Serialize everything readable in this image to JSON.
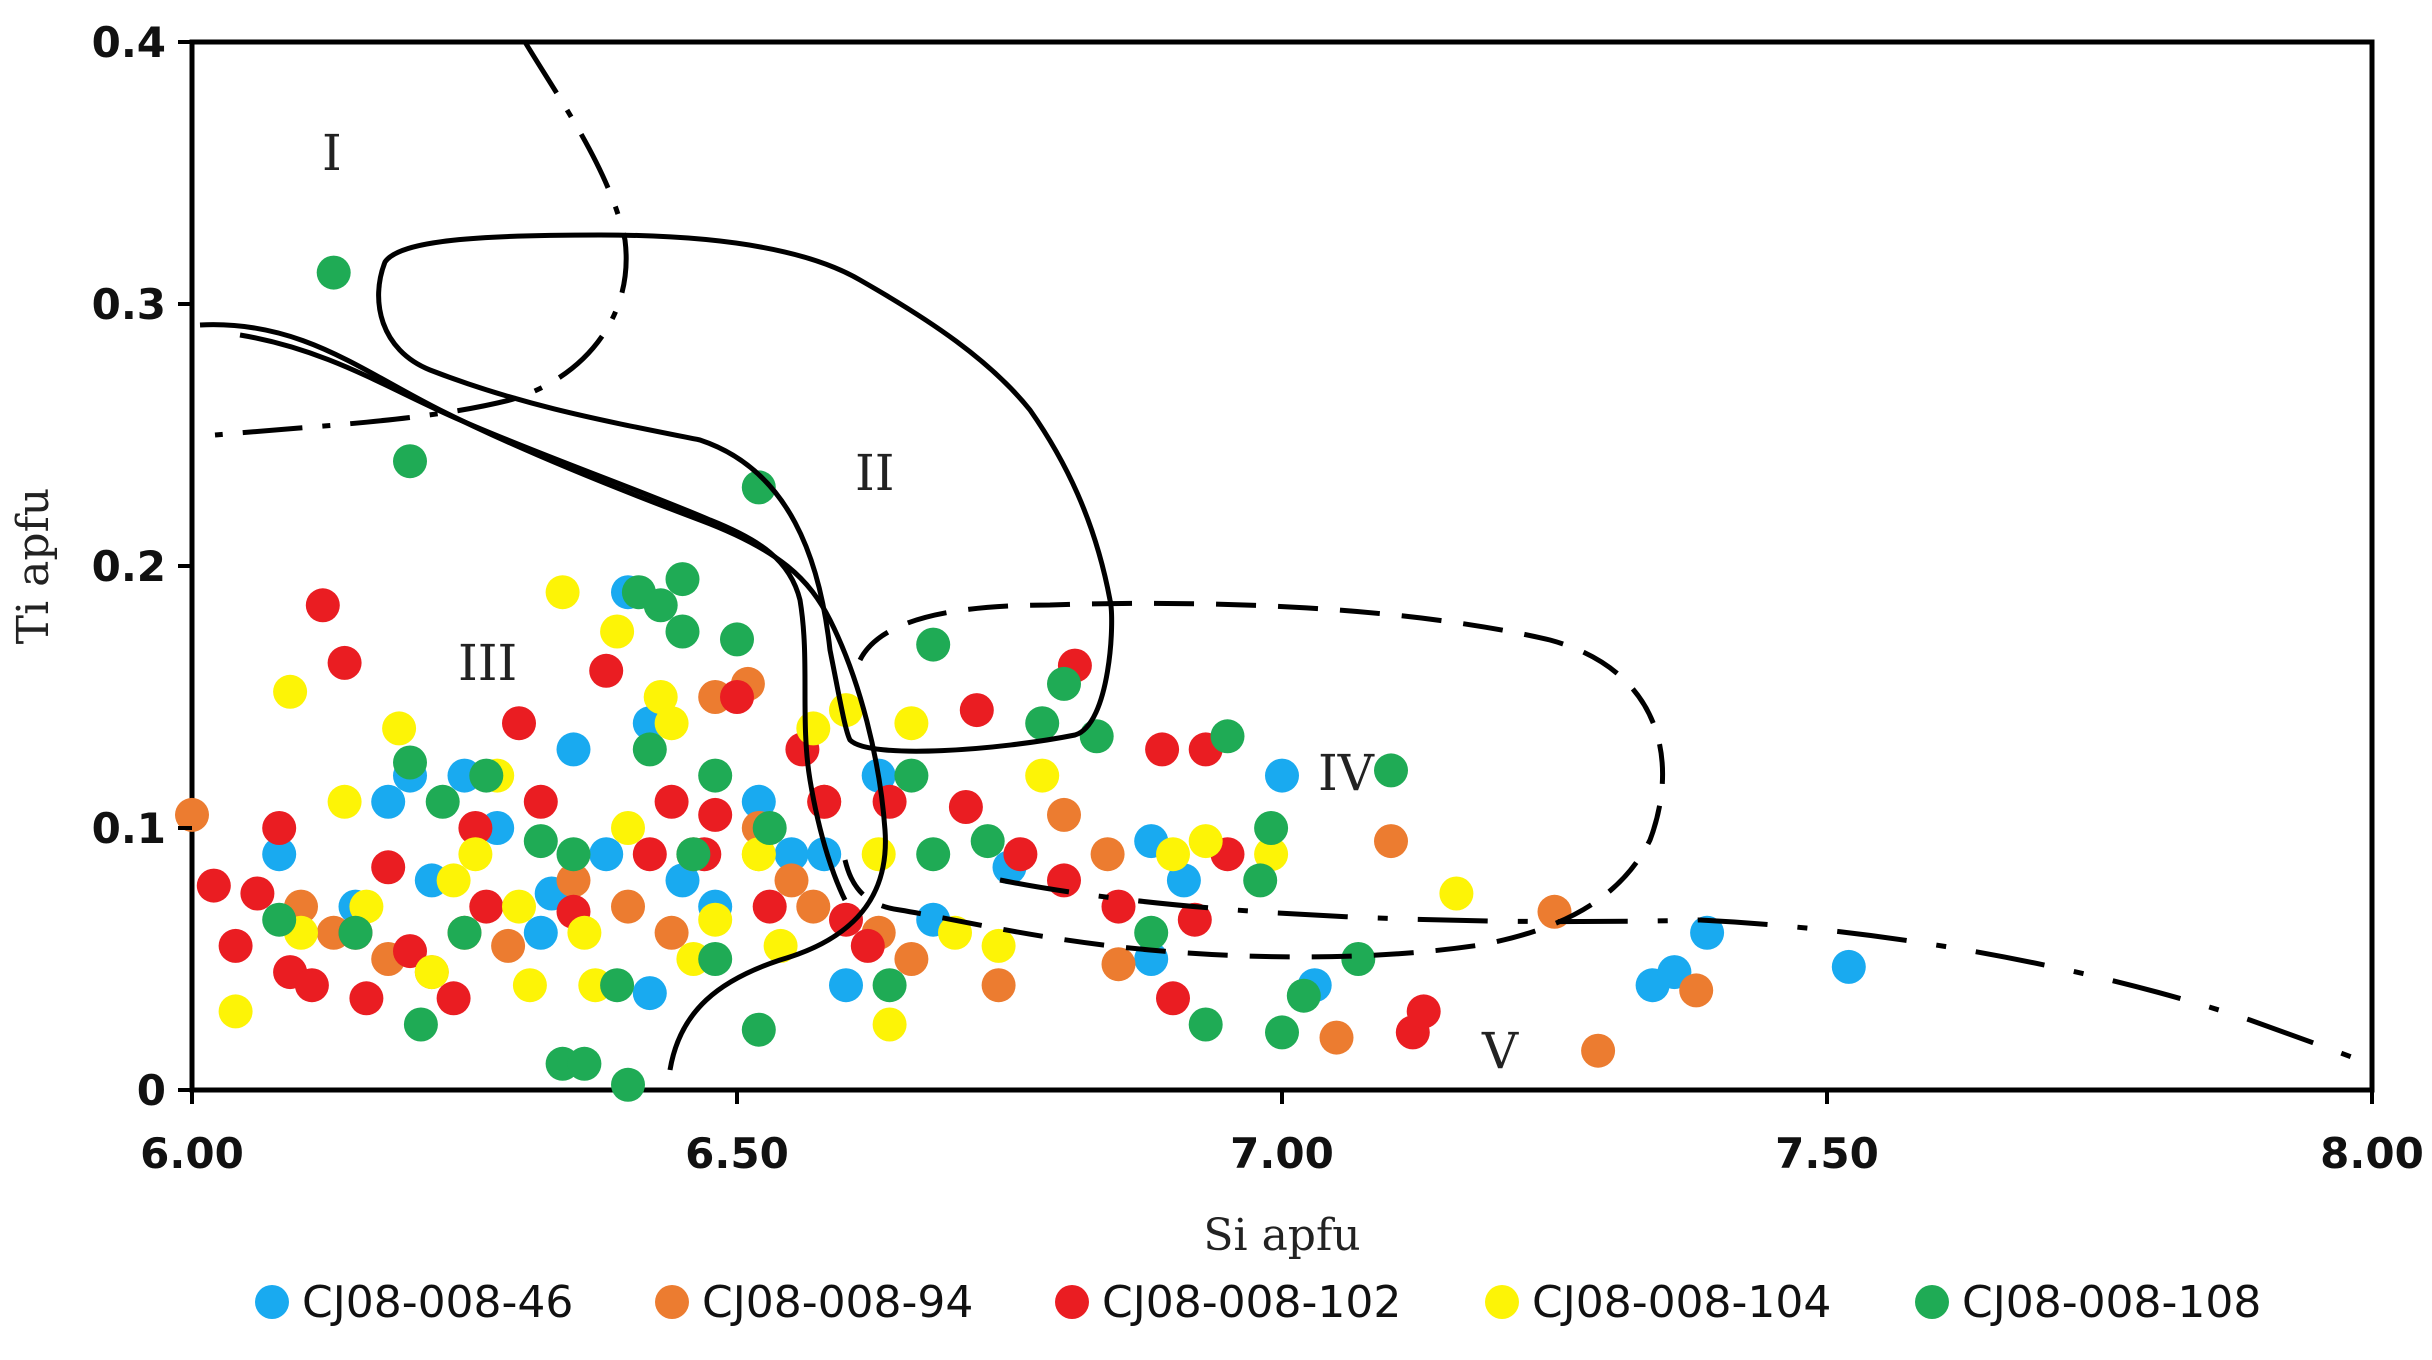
{
  "chart_data": {
    "type": "scatter",
    "title": "",
    "xlabel": "Si apfu",
    "ylabel": "Ti apfu",
    "xlim": [
      6.0,
      8.0
    ],
    "ylim": [
      0,
      0.4
    ],
    "x_ticks": [
      "6.00",
      "6.50",
      "7.00",
      "7.50",
      "8.00"
    ],
    "y_ticks": [
      "0",
      "0.1",
      "0.2",
      "0.3",
      "0.4"
    ],
    "region_labels": [
      "I",
      "II",
      "III",
      "IV",
      "V"
    ],
    "legend_position": "bottom",
    "series": [
      {
        "name": "CJ08-008-46",
        "color": "#19aaf0",
        "points": [
          [
            6.08,
            0.09
          ],
          [
            6.15,
            0.07
          ],
          [
            6.18,
            0.11
          ],
          [
            6.22,
            0.08
          ],
          [
            6.25,
            0.12
          ],
          [
            6.28,
            0.1
          ],
          [
            6.32,
            0.06
          ],
          [
            6.35,
            0.13
          ],
          [
            6.38,
            0.09
          ],
          [
            6.4,
            0.19
          ],
          [
            6.42,
            0.14
          ],
          [
            6.45,
            0.08
          ],
          [
            6.48,
            0.07
          ],
          [
            6.52,
            0.11
          ],
          [
            6.55,
            0.09
          ],
          [
            6.6,
            0.04
          ],
          [
            6.63,
            0.12
          ],
          [
            6.68,
            0.065
          ],
          [
            6.88,
            0.095
          ],
          [
            6.91,
            0.08
          ],
          [
            7.0,
            0.12
          ],
          [
            7.03,
            0.04
          ],
          [
            7.34,
            0.04
          ],
          [
            7.36,
            0.045
          ],
          [
            7.39,
            0.06
          ],
          [
            7.52,
            0.047
          ],
          [
            6.2,
            0.12
          ],
          [
            6.33,
            0.075
          ],
          [
            6.42,
            0.037
          ],
          [
            6.58,
            0.09
          ],
          [
            6.75,
            0.085
          ],
          [
            6.88,
            0.05
          ]
        ]
      },
      {
        "name": "CJ08-008-94",
        "color": "#ec7c30",
        "points": [
          [
            6.0,
            0.105
          ],
          [
            6.1,
            0.07
          ],
          [
            6.13,
            0.06
          ],
          [
            6.18,
            0.05
          ],
          [
            6.22,
            0.045
          ],
          [
            6.25,
            0.06
          ],
          [
            6.29,
            0.055
          ],
          [
            6.35,
            0.08
          ],
          [
            6.4,
            0.07
          ],
          [
            6.44,
            0.06
          ],
          [
            6.48,
            0.15
          ],
          [
            6.51,
            0.155
          ],
          [
            6.52,
            0.1
          ],
          [
            6.55,
            0.08
          ],
          [
            6.58,
            0.11
          ],
          [
            6.63,
            0.06
          ],
          [
            6.66,
            0.05
          ],
          [
            6.74,
            0.04
          ],
          [
            6.8,
            0.105
          ],
          [
            6.84,
            0.09
          ],
          [
            6.85,
            0.048
          ],
          [
            7.05,
            0.02
          ],
          [
            7.1,
            0.095
          ],
          [
            7.25,
            0.068
          ],
          [
            7.29,
            0.015
          ],
          [
            7.38,
            0.038
          ],
          [
            6.46,
            0.09
          ],
          [
            6.57,
            0.07
          ]
        ]
      },
      {
        "name": "CJ08-008-102",
        "color": "#ea1d22",
        "points": [
          [
            6.02,
            0.078
          ],
          [
            6.04,
            0.055
          ],
          [
            6.06,
            0.075
          ],
          [
            6.08,
            0.1
          ],
          [
            6.09,
            0.045
          ],
          [
            6.11,
            0.04
          ],
          [
            6.12,
            0.185
          ],
          [
            6.14,
            0.163
          ],
          [
            6.15,
            0.06
          ],
          [
            6.16,
            0.035
          ],
          [
            6.18,
            0.085
          ],
          [
            6.2,
            0.053
          ],
          [
            6.24,
            0.035
          ],
          [
            6.27,
            0.07
          ],
          [
            6.3,
            0.14
          ],
          [
            6.32,
            0.11
          ],
          [
            6.35,
            0.068
          ],
          [
            6.38,
            0.16
          ],
          [
            6.42,
            0.09
          ],
          [
            6.44,
            0.11
          ],
          [
            6.47,
            0.09
          ],
          [
            6.5,
            0.15
          ],
          [
            6.53,
            0.07
          ],
          [
            6.56,
            0.13
          ],
          [
            6.58,
            0.11
          ],
          [
            6.6,
            0.065
          ],
          [
            6.62,
            0.055
          ],
          [
            6.64,
            0.11
          ],
          [
            6.71,
            0.108
          ],
          [
            6.72,
            0.145
          ],
          [
            6.76,
            0.09
          ],
          [
            6.8,
            0.08
          ],
          [
            6.81,
            0.162
          ],
          [
            6.85,
            0.07
          ],
          [
            6.89,
            0.13
          ],
          [
            6.9,
            0.035
          ],
          [
            6.92,
            0.065
          ],
          [
            6.93,
            0.13
          ],
          [
            6.95,
            0.09
          ],
          [
            7.12,
            0.022
          ],
          [
            7.13,
            0.03
          ],
          [
            6.26,
            0.1
          ],
          [
            6.48,
            0.105
          ]
        ]
      },
      {
        "name": "CJ08-008-104",
        "color": "#fdf406",
        "points": [
          [
            6.04,
            0.03
          ],
          [
            6.09,
            0.152
          ],
          [
            6.1,
            0.06
          ],
          [
            6.14,
            0.11
          ],
          [
            6.16,
            0.07
          ],
          [
            6.19,
            0.138
          ],
          [
            6.22,
            0.045
          ],
          [
            6.24,
            0.08
          ],
          [
            6.26,
            0.09
          ],
          [
            6.3,
            0.07
          ],
          [
            6.31,
            0.04
          ],
          [
            6.34,
            0.19
          ],
          [
            6.36,
            0.06
          ],
          [
            6.37,
            0.04
          ],
          [
            6.39,
            0.175
          ],
          [
            6.4,
            0.1
          ],
          [
            6.43,
            0.15
          ],
          [
            6.46,
            0.05
          ],
          [
            6.48,
            0.065
          ],
          [
            6.52,
            0.09
          ],
          [
            6.54,
            0.055
          ],
          [
            6.57,
            0.138
          ],
          [
            6.6,
            0.145
          ],
          [
            6.63,
            0.09
          ],
          [
            6.64,
            0.025
          ],
          [
            6.7,
            0.06
          ],
          [
            6.74,
            0.055
          ],
          [
            6.78,
            0.12
          ],
          [
            6.9,
            0.09
          ],
          [
            6.93,
            0.095
          ],
          [
            6.99,
            0.09
          ],
          [
            7.16,
            0.075
          ],
          [
            6.28,
            0.12
          ],
          [
            6.44,
            0.14
          ],
          [
            6.52,
            0.09
          ],
          [
            6.66,
            0.14
          ]
        ]
      },
      {
        "name": "CJ08-008-108",
        "color": "#1fab55",
        "points": [
          [
            6.13,
            0.312
          ],
          [
            6.2,
            0.24
          ],
          [
            6.08,
            0.065
          ],
          [
            6.15,
            0.06
          ],
          [
            6.2,
            0.125
          ],
          [
            6.21,
            0.025
          ],
          [
            6.23,
            0.11
          ],
          [
            6.25,
            0.06
          ],
          [
            6.27,
            0.12
          ],
          [
            6.32,
            0.095
          ],
          [
            6.34,
            0.01
          ],
          [
            6.36,
            0.01
          ],
          [
            6.39,
            0.04
          ],
          [
            6.4,
            0.002
          ],
          [
            6.41,
            0.19
          ],
          [
            6.42,
            0.13
          ],
          [
            6.43,
            0.185
          ],
          [
            6.45,
            0.175
          ],
          [
            6.45,
            0.195
          ],
          [
            6.48,
            0.12
          ],
          [
            6.48,
            0.05
          ],
          [
            6.5,
            0.172
          ],
          [
            6.52,
            0.23
          ],
          [
            6.52,
            0.023
          ],
          [
            6.53,
            0.1
          ],
          [
            6.64,
            0.04
          ],
          [
            6.66,
            0.12
          ],
          [
            6.68,
            0.17
          ],
          [
            6.68,
            0.09
          ],
          [
            6.73,
            0.095
          ],
          [
            6.78,
            0.14
          ],
          [
            6.8,
            0.155
          ],
          [
            6.83,
            0.135
          ],
          [
            6.88,
            0.06
          ],
          [
            6.93,
            0.025
          ],
          [
            6.95,
            0.135
          ],
          [
            6.98,
            0.08
          ],
          [
            6.99,
            0.1
          ],
          [
            7.0,
            0.022
          ],
          [
            7.02,
            0.036
          ],
          [
            7.07,
            0.05
          ],
          [
            7.1,
            0.122
          ],
          [
            6.35,
            0.09
          ],
          [
            6.46,
            0.09
          ]
        ]
      }
    ]
  }
}
